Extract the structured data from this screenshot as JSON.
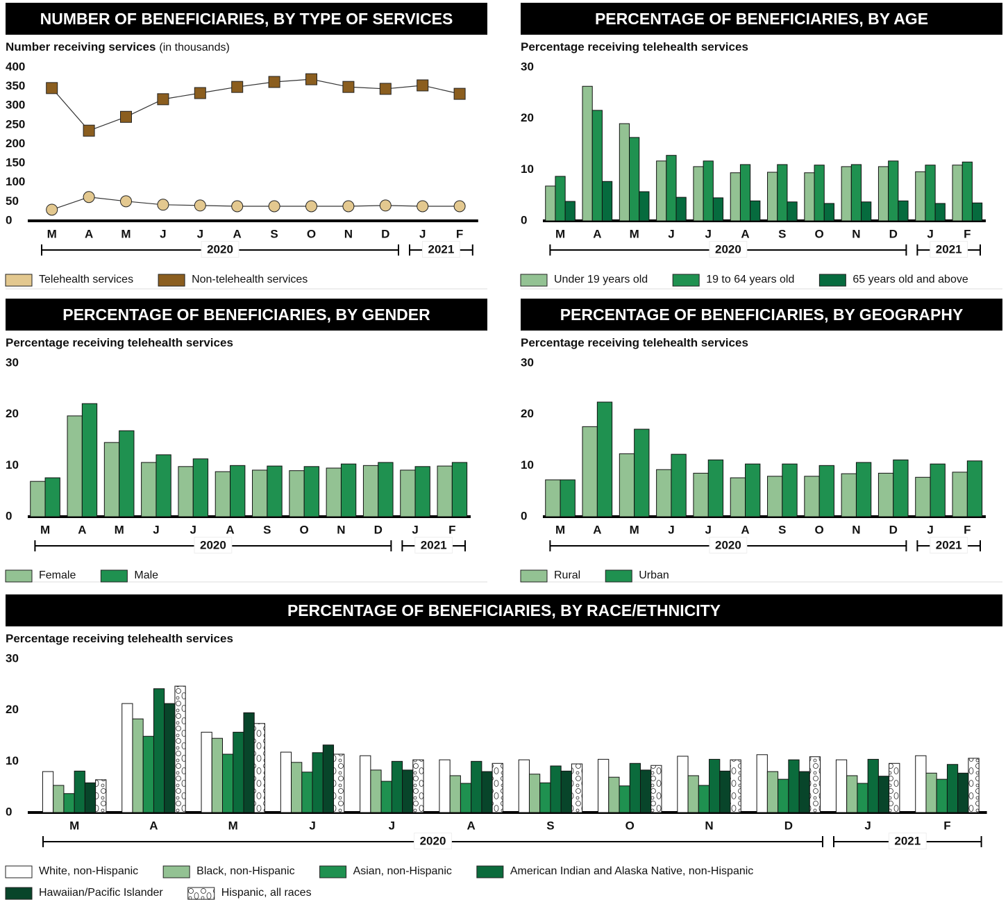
{
  "chart_data": [
    {
      "type": "line",
      "title": "NUMBER OF BENEFICIARIES, BY TYPE OF SERVICES",
      "y_label": "Number receiving services",
      "y_unit_note": "(in thousands)",
      "categories": [
        "M",
        "A",
        "M",
        "J",
        "J",
        "A",
        "S",
        "O",
        "N",
        "D",
        "J",
        "F"
      ],
      "year_groups": [
        {
          "label": "2020",
          "span": 10
        },
        {
          "label": "2021",
          "span": 2
        }
      ],
      "ylim": [
        0,
        400
      ],
      "yticks": [
        0,
        50,
        100,
        150,
        200,
        250,
        300,
        350,
        400
      ],
      "series": [
        {
          "name": "Telehealth services",
          "color": "#e3c88f",
          "marker": "circle",
          "values": [
            29,
            62,
            51,
            42,
            40,
            38,
            38,
            38,
            38,
            40,
            38,
            38
          ]
        },
        {
          "name": "Non-telehealth services",
          "color": "#8b5e1f",
          "marker": "square",
          "values": [
            346,
            235,
            271,
            317,
            333,
            349,
            362,
            369,
            349,
            344,
            353,
            331
          ]
        }
      ]
    },
    {
      "type": "bar",
      "title": "PERCENTAGE OF BENEFICIARIES, BY AGE",
      "y_label": "Percentage receiving telehealth services",
      "categories": [
        "M",
        "A",
        "M",
        "J",
        "J",
        "A",
        "S",
        "O",
        "N",
        "D",
        "J",
        "F"
      ],
      "year_groups": [
        {
          "label": "2020",
          "span": 10
        },
        {
          "label": "2021",
          "span": 2
        }
      ],
      "ylim": [
        0,
        30
      ],
      "yticks": [
        0,
        10,
        20,
        30
      ],
      "series": [
        {
          "name": "Under 19 years old",
          "color": "#93c293",
          "values": [
            6.8,
            26.3,
            19.0,
            11.7,
            10.6,
            9.4,
            9.5,
            9.4,
            10.6,
            10.6,
            9.6,
            10.9
          ]
        },
        {
          "name": "19 to 64 years old",
          "color": "#1f9150",
          "values": [
            8.7,
            21.6,
            16.3,
            12.8,
            11.7,
            11.0,
            11.0,
            10.9,
            11.0,
            11.7,
            10.9,
            11.5
          ]
        },
        {
          "name": "65 years old and above",
          "color": "#066b3e",
          "values": [
            3.8,
            7.7,
            5.7,
            4.6,
            4.5,
            3.9,
            3.7,
            3.4,
            3.7,
            3.9,
            3.4,
            3.5
          ]
        }
      ]
    },
    {
      "type": "bar",
      "title": "PERCENTAGE OF BENEFICIARIES, BY GENDER",
      "y_label": "Percentage receiving telehealth services",
      "categories": [
        "M",
        "A",
        "M",
        "J",
        "J",
        "A",
        "S",
        "O",
        "N",
        "D",
        "J",
        "F"
      ],
      "year_groups": [
        {
          "label": "2020",
          "span": 10
        },
        {
          "label": "2021",
          "span": 2
        }
      ],
      "ylim": [
        0,
        30
      ],
      "yticks": [
        0,
        10,
        20,
        30
      ],
      "series": [
        {
          "name": "Female",
          "color": "#93c293",
          "values": [
            6.9,
            19.7,
            14.5,
            10.6,
            9.8,
            8.8,
            9.1,
            9.0,
            9.5,
            10.0,
            9.1,
            9.9
          ]
        },
        {
          "name": "Male",
          "color": "#1f9150",
          "values": [
            7.6,
            22.1,
            16.8,
            12.1,
            11.3,
            10.0,
            9.9,
            9.8,
            10.3,
            10.6,
            9.8,
            10.6
          ]
        }
      ]
    },
    {
      "type": "bar",
      "title": "PERCENTAGE OF BENEFICIARIES, BY GEOGRAPHY",
      "y_label": "Percentage receiving telehealth services",
      "categories": [
        "M",
        "A",
        "M",
        "J",
        "J",
        "A",
        "S",
        "O",
        "N",
        "D",
        "J",
        "F"
      ],
      "year_groups": [
        {
          "label": "2020",
          "span": 10
        },
        {
          "label": "2021",
          "span": 2
        }
      ],
      "ylim": [
        0,
        30
      ],
      "yticks": [
        0,
        10,
        20,
        30
      ],
      "series": [
        {
          "name": "Rural",
          "color": "#93c293",
          "values": [
            7.2,
            17.6,
            12.3,
            9.2,
            8.5,
            7.6,
            7.9,
            7.9,
            8.4,
            8.5,
            7.7,
            8.7
          ]
        },
        {
          "name": "Urban",
          "color": "#1f9150",
          "values": [
            7.2,
            22.4,
            17.1,
            12.2,
            11.1,
            10.3,
            10.3,
            10.0,
            10.6,
            11.1,
            10.3,
            10.9
          ]
        }
      ]
    },
    {
      "type": "bar",
      "title": "PERCENTAGE OF BENEFICIARIES, BY RACE/ETHNICITY",
      "y_label": "Percentage receiving telehealth services",
      "categories": [
        "M",
        "A",
        "M",
        "J",
        "J",
        "A",
        "S",
        "O",
        "N",
        "D",
        "J",
        "F"
      ],
      "year_groups": [
        {
          "label": "2020",
          "span": 10
        },
        {
          "label": "2021",
          "span": 2
        }
      ],
      "ylim": [
        0,
        30
      ],
      "yticks": [
        0,
        10,
        20,
        30
      ],
      "series": [
        {
          "name": "White, non-Hispanic",
          "color": "#ffffff",
          "values": [
            8.0,
            21.3,
            15.7,
            11.8,
            11.1,
            10.3,
            10.3,
            10.4,
            11.0,
            11.3,
            10.3,
            11.1
          ]
        },
        {
          "name": "Black, non-Hispanic",
          "color": "#93c293",
          "values": [
            5.3,
            18.3,
            14.5,
            9.8,
            8.3,
            7.2,
            7.5,
            6.9,
            7.2,
            8.0,
            7.2,
            7.7
          ]
        },
        {
          "name": "Asian, non-Hispanic",
          "color": "#1f9150",
          "values": [
            3.7,
            14.9,
            11.4,
            7.9,
            6.1,
            5.7,
            5.8,
            5.2,
            5.3,
            6.5,
            5.7,
            6.5
          ]
        },
        {
          "name": "American Indian and Alaska Native, non-Hispanic",
          "color": "#0b6b3c",
          "values": [
            8.1,
            24.2,
            15.7,
            11.7,
            10.0,
            10.0,
            9.1,
            9.6,
            10.4,
            10.3,
            10.4,
            9.4
          ]
        },
        {
          "name": "Hawaiian/Pacific Islander",
          "color": "#08452a",
          "values": [
            5.8,
            21.3,
            19.5,
            13.2,
            8.3,
            8.0,
            8.1,
            8.3,
            8.1,
            8.0,
            7.1,
            7.7
          ]
        },
        {
          "name": "Hispanic, all races",
          "color": "#ffffff",
          "hatch": true,
          "values": [
            6.4,
            24.7,
            17.4,
            11.4,
            10.3,
            9.6,
            9.5,
            9.2,
            10.3,
            10.9,
            9.6,
            10.6
          ]
        }
      ]
    }
  ]
}
